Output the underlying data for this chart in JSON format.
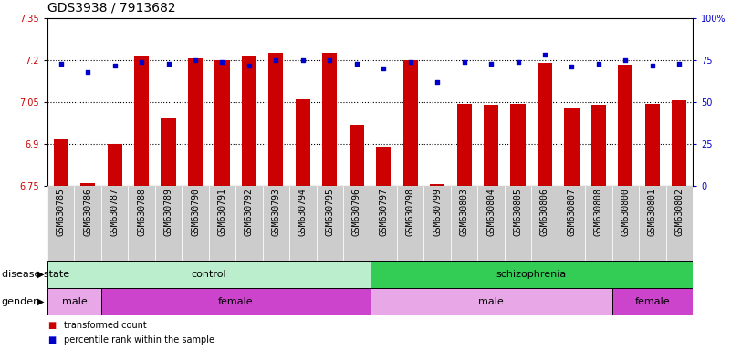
{
  "title": "GDS3938 / 7913682",
  "categories": [
    "GSM630785",
    "GSM630786",
    "GSM630787",
    "GSM630788",
    "GSM630789",
    "GSM630790",
    "GSM630791",
    "GSM630792",
    "GSM630793",
    "GSM630794",
    "GSM630795",
    "GSM630796",
    "GSM630797",
    "GSM630798",
    "GSM630799",
    "GSM630803",
    "GSM630804",
    "GSM630805",
    "GSM630806",
    "GSM630807",
    "GSM630808",
    "GSM630800",
    "GSM630801",
    "GSM630802"
  ],
  "bar_values": [
    6.92,
    6.76,
    6.9,
    7.215,
    6.99,
    7.205,
    7.2,
    7.215,
    7.225,
    7.06,
    7.225,
    6.97,
    6.89,
    7.2,
    6.755,
    7.045,
    7.04,
    7.045,
    7.19,
    7.03,
    7.04,
    7.185,
    7.045,
    7.055
  ],
  "dot_values_pct": [
    73,
    68,
    72,
    74,
    73,
    75,
    74,
    72,
    75,
    75,
    75,
    73,
    70,
    74,
    62,
    74,
    73,
    74,
    78,
    71,
    73,
    75,
    72,
    73
  ],
  "bar_color": "#cc0000",
  "dot_color": "#0000cc",
  "ylim": [
    6.75,
    7.35
  ],
  "y2lim": [
    0,
    100
  ],
  "yticks": [
    6.75,
    6.9,
    7.05,
    7.2,
    7.35
  ],
  "y2ticks": [
    0,
    25,
    50,
    75,
    100
  ],
  "ytick_labels": [
    "6.75",
    "6.9",
    "7.05",
    "7.2",
    "7.35"
  ],
  "y2tick_labels": [
    "0",
    "25",
    "50",
    "75",
    "100%"
  ],
  "gridlines": [
    6.9,
    7.05,
    7.2
  ],
  "disease_state_spans": [
    {
      "label": "control",
      "start": 0,
      "end": 11,
      "color": "#bbeecc"
    },
    {
      "label": "schizophrenia",
      "start": 12,
      "end": 23,
      "color": "#33cc55"
    }
  ],
  "gender_spans": [
    {
      "label": "male",
      "start": 0,
      "end": 1,
      "color": "#e8a8e8"
    },
    {
      "label": "female",
      "start": 2,
      "end": 11,
      "color": "#cc44cc"
    },
    {
      "label": "male",
      "start": 12,
      "end": 20,
      "color": "#e8a8e8"
    },
    {
      "label": "female",
      "start": 21,
      "end": 23,
      "color": "#cc44cc"
    }
  ],
  "legend_items": [
    {
      "label": "transformed count",
      "color": "#cc0000"
    },
    {
      "label": "percentile rank within the sample",
      "color": "#0000cc"
    }
  ],
  "title_fontsize": 10,
  "tick_fontsize": 7,
  "label_fontsize": 8,
  "bar_width": 0.55,
  "xtick_bg": "#cccccc",
  "background_color": "#ffffff"
}
